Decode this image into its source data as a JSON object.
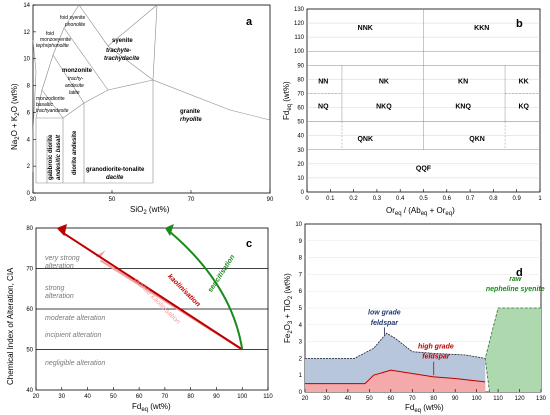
{
  "panel_a": {
    "letter": "a",
    "ylabel_parts": [
      "Na",
      "2",
      "O + K",
      "2",
      "O (wt%)"
    ],
    "xlabel_parts": [
      "SiO",
      "2",
      " (wt%)"
    ],
    "x_ticks": [
      "30",
      "50",
      "70",
      "90"
    ],
    "y_ticks": [
      "0",
      "2",
      "4",
      "6",
      "8",
      "10",
      "12",
      "14"
    ],
    "fields": {
      "foid_syenite": "foid syenite",
      "phonolite": "phonolite",
      "foid": "foid",
      "foid_monzosyenite": "monzoeyenite",
      "tephriphonolite": "tephriphonolite",
      "syenite": "syenite",
      "trachyte1": "trachyte-",
      "trachyte2": "trachydacite",
      "monzonite": "monzonite",
      "trachy1": "trachy-",
      "trachy2": "andesite",
      "latite": "latite",
      "monzodiorite1": "monzodiorite",
      "monzodiorite2": "basaltic",
      "monzodiorite3": "trachyandesite",
      "gabbro1": "gabbroic diorite",
      "gabbro2": "andesitic basalt",
      "diorite": "diorite andesite",
      "granite": "granite",
      "rhyolite": "rhyolite",
      "granodiorite": "granodiorite-tonalite",
      "dacite": "dacite"
    }
  },
  "panel_b": {
    "letter": "b",
    "ylabel": "Fd",
    "ylabel_sub": "eq",
    "ylabel_suffix": " (wt%)",
    "xlabel": "Or",
    "xlabel_rest": " / (Ab",
    "xlabel_rest2": " + Or",
    "xlabel_end": ")",
    "sub": "eq",
    "x_ticks": [
      "0",
      "0.1",
      "0.2",
      "0.3",
      "0.4",
      "0.5",
      "0.6",
      "0.7",
      "0.8",
      "0.9",
      "1"
    ],
    "y_ticks": [
      "0",
      "10",
      "20",
      "30",
      "40",
      "50",
      "60",
      "70",
      "80",
      "90",
      "100",
      "110",
      "120",
      "130"
    ],
    "fields": [
      "NNK",
      "KKN",
      "NN",
      "NK",
      "KN",
      "KK",
      "NQ",
      "NKQ",
      "KNQ",
      "KQ",
      "QNK",
      "QKN",
      "QQF"
    ]
  },
  "panel_c": {
    "letter": "c",
    "ylabel": "Chemical Index of Alteration, CIA",
    "xlabel": "Fd",
    "xlabel_sub": "eq",
    "xlabel_suffix": " (wt%)",
    "x_ticks": [
      "20",
      "30",
      "40",
      "50",
      "60",
      "70",
      "80",
      "90",
      "100",
      "110"
    ],
    "y_ticks": [
      "40",
      "50",
      "60",
      "70",
      "80"
    ],
    "zones": [
      "very strong",
      "alteration",
      "strong",
      "alteration",
      "moderate alteration",
      "incipient alteration",
      "negligible alteration"
    ],
    "trends": {
      "sericitisation": "sericitisation",
      "kaolinisation": "kaolinisation",
      "granite_kaolinisation": "granite kaolinisation"
    },
    "colors": {
      "kaolinisation": "#c00000",
      "sericitisation": "#1a8a1a",
      "granite": "#f0a0a0"
    }
  },
  "panel_d": {
    "letter": "d",
    "ylabel_parts": [
      "Fe",
      "2",
      "O",
      "3",
      " + TiO",
      "2",
      " (wt%)"
    ],
    "xlabel": "Fd",
    "xlabel_sub": "eq",
    "xlabel_suffix": " (wt%)",
    "x_ticks": [
      "20",
      "30",
      "40",
      "50",
      "60",
      "70",
      "80",
      "90",
      "100",
      "110",
      "120",
      "130"
    ],
    "y_ticks": [
      "0",
      "1",
      "2",
      "3",
      "4",
      "5",
      "6",
      "7",
      "8",
      "9",
      "10"
    ],
    "labels": {
      "low1": "low grade",
      "low2": "feldspar",
      "high1": "high grade",
      "high2": "feldspar",
      "raw1": "raw",
      "raw2": "nepheline syenite"
    },
    "colors": {
      "low": "#b8c6dc",
      "high": "#f4aaaa",
      "raw": "#aed8ae",
      "low_text": "#1f3a6e",
      "high_text": "#c00000",
      "raw_text": "#1a8a1a"
    }
  }
}
